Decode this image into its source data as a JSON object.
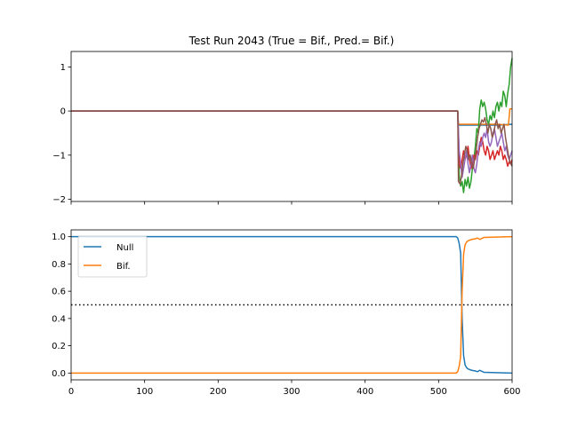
{
  "chart_data": [
    {
      "type": "line",
      "title": "Test Run 2043 (True = Bif., Pred.= Bif.)",
      "xlim": [
        0,
        600
      ],
      "ylim": [
        -2.05,
        1.35
      ],
      "yticks": [
        -2,
        -1,
        0,
        1
      ],
      "xtick_labels_shown": false,
      "series": [
        {
          "color": "#1f77b4",
          "points": [
            [
              0,
              0
            ],
            [
              526,
              0
            ],
            [
              527,
              -0.32
            ],
            [
              580,
              -0.32
            ],
            [
              600,
              -0.3
            ]
          ]
        },
        {
          "color": "#ff7f0e",
          "points": [
            [
              0,
              0
            ],
            [
              526,
              0
            ],
            [
              527,
              -0.3
            ],
            [
              540,
              -0.3
            ],
            [
              560,
              -0.3
            ],
            [
              580,
              -0.3
            ],
            [
              595,
              -0.32
            ],
            [
              597,
              0.05
            ],
            [
              600,
              0.05
            ]
          ]
        },
        {
          "color": "#2ca02c",
          "points": [
            [
              0,
              0
            ],
            [
              526,
              0
            ],
            [
              528,
              -1.45
            ],
            [
              530,
              -1.7
            ],
            [
              532,
              -1.6
            ],
            [
              534,
              -1.85
            ],
            [
              536,
              -1.55
            ],
            [
              538,
              -1.7
            ],
            [
              540,
              -1.5
            ],
            [
              542,
              -1.75
            ],
            [
              544,
              -1.6
            ],
            [
              546,
              -1.3
            ],
            [
              548,
              -1.1
            ],
            [
              550,
              -0.8
            ],
            [
              552,
              -0.4
            ],
            [
              554,
              -0.5
            ],
            [
              556,
              0.05
            ],
            [
              558,
              0.25
            ],
            [
              560,
              0.1
            ],
            [
              562,
              0.2
            ],
            [
              564,
              0.05
            ],
            [
              566,
              -0.2
            ],
            [
              568,
              -0.3
            ],
            [
              570,
              -0.1
            ],
            [
              572,
              -0.2
            ],
            [
              574,
              0.0
            ],
            [
              576,
              -0.15
            ],
            [
              578,
              0.1
            ],
            [
              580,
              0.2
            ],
            [
              582,
              0.0
            ],
            [
              584,
              0.2
            ],
            [
              586,
              0.1
            ],
            [
              588,
              0.45
            ],
            [
              590,
              0.35
            ],
            [
              592,
              0.1
            ],
            [
              594,
              0.4
            ],
            [
              596,
              0.6
            ],
            [
              598,
              1.0
            ],
            [
              600,
              1.2
            ]
          ]
        },
        {
          "color": "#d62728",
          "points": [
            [
              0,
              0
            ],
            [
              526,
              0
            ],
            [
              528,
              -1.2
            ],
            [
              530,
              -1.3
            ],
            [
              532,
              -1.1
            ],
            [
              534,
              -0.9
            ],
            [
              536,
              -1.1
            ],
            [
              538,
              -1.0
            ],
            [
              540,
              -0.8
            ],
            [
              542,
              -1.1
            ],
            [
              544,
              -1.3
            ],
            [
              546,
              -1.2
            ],
            [
              548,
              -1.0
            ],
            [
              550,
              -1.1
            ],
            [
              552,
              -0.9
            ],
            [
              554,
              -1.0
            ],
            [
              556,
              -0.8
            ],
            [
              558,
              -0.6
            ],
            [
              560,
              -0.7
            ],
            [
              562,
              -0.9
            ],
            [
              564,
              -1.0
            ],
            [
              566,
              -0.8
            ],
            [
              568,
              -0.9
            ],
            [
              570,
              -1.1
            ],
            [
              572,
              -1.0
            ],
            [
              574,
              -0.9
            ],
            [
              576,
              -1.1
            ],
            [
              578,
              -1.0
            ],
            [
              580,
              -0.9
            ],
            [
              582,
              -1.0
            ],
            [
              584,
              -0.8
            ],
            [
              586,
              -0.9
            ],
            [
              588,
              -1.1
            ],
            [
              590,
              -1.0
            ],
            [
              592,
              -1.1
            ],
            [
              594,
              -1.25
            ],
            [
              596,
              -1.15
            ],
            [
              598,
              -1.2
            ],
            [
              600,
              -1.1
            ]
          ]
        },
        {
          "color": "#9467bd",
          "points": [
            [
              0,
              0
            ],
            [
              526,
              0
            ],
            [
              528,
              -0.9
            ],
            [
              530,
              -1.2
            ],
            [
              532,
              -1.5
            ],
            [
              534,
              -1.3
            ],
            [
              536,
              -1.1
            ],
            [
              538,
              -0.9
            ],
            [
              540,
              -1.2
            ],
            [
              542,
              -1.4
            ],
            [
              544,
              -1.2
            ],
            [
              546,
              -1.0
            ],
            [
              548,
              -1.3
            ],
            [
              550,
              -1.4
            ],
            [
              552,
              -1.2
            ],
            [
              554,
              -0.9
            ],
            [
              556,
              -0.7
            ],
            [
              558,
              -0.8
            ],
            [
              560,
              -0.6
            ],
            [
              562,
              -0.5
            ],
            [
              564,
              -0.6
            ],
            [
              566,
              -0.4
            ],
            [
              568,
              -0.7
            ],
            [
              570,
              -0.8
            ],
            [
              572,
              -0.7
            ],
            [
              574,
              -0.5
            ],
            [
              576,
              -0.4
            ],
            [
              578,
              -0.6
            ],
            [
              580,
              -0.8
            ],
            [
              582,
              -0.7
            ],
            [
              584,
              -0.6
            ],
            [
              586,
              -0.5
            ],
            [
              588,
              -0.7
            ],
            [
              590,
              -0.9
            ],
            [
              592,
              -0.8
            ],
            [
              594,
              -1.0
            ],
            [
              596,
              -1.1
            ],
            [
              598,
              -1.0
            ],
            [
              600,
              -0.9
            ]
          ]
        },
        {
          "color": "#8c564b",
          "points": [
            [
              0,
              0
            ],
            [
              526,
              0
            ],
            [
              527,
              -1.6
            ],
            [
              529,
              -1.65
            ],
            [
              531,
              -1.5
            ],
            [
              533,
              -1.2
            ],
            [
              535,
              -1.0
            ],
            [
              537,
              -0.8
            ],
            [
              539,
              -0.9
            ],
            [
              541,
              -1.1
            ],
            [
              543,
              -1.0
            ],
            [
              545,
              -1.2
            ],
            [
              547,
              -1.3
            ],
            [
              549,
              -1.1
            ],
            [
              551,
              -0.9
            ],
            [
              553,
              -0.6
            ],
            [
              555,
              -0.4
            ],
            [
              557,
              -0.3
            ],
            [
              559,
              -0.2
            ],
            [
              561,
              -0.25
            ],
            [
              563,
              -0.15
            ],
            [
              565,
              -0.3
            ],
            [
              567,
              -0.5
            ],
            [
              569,
              -0.3
            ],
            [
              571,
              -0.4
            ],
            [
              573,
              -0.6
            ],
            [
              575,
              -0.5
            ],
            [
              577,
              -0.3
            ],
            [
              579,
              -0.2
            ],
            [
              581,
              -0.4
            ],
            [
              583,
              -0.3
            ],
            [
              585,
              -0.5
            ],
            [
              587,
              -0.4
            ],
            [
              589,
              -0.3
            ],
            [
              591,
              -0.6
            ],
            [
              593,
              -0.8
            ],
            [
              595,
              -1.0
            ],
            [
              597,
              -1.15
            ],
            [
              600,
              -1.25
            ]
          ]
        }
      ]
    },
    {
      "type": "line",
      "xlim": [
        0,
        600
      ],
      "ylim": [
        -0.05,
        1.05
      ],
      "xticks": [
        0,
        100,
        200,
        300,
        400,
        500,
        600
      ],
      "yticks": [
        0.0,
        0.2,
        0.4,
        0.6,
        0.8,
        1.0
      ],
      "ytick_labels": [
        "0.0",
        "0.2",
        "0.4",
        "0.6",
        "0.8",
        "1.0"
      ],
      "threshold": 0.5,
      "legend_position": "upper-left",
      "series": [
        {
          "name": "Null",
          "color": "#1f77b4",
          "points": [
            [
              0,
              1.0
            ],
            [
              524,
              1.0
            ],
            [
              526,
              0.99
            ],
            [
              528,
              0.95
            ],
            [
              530,
              0.88
            ],
            [
              532,
              0.4
            ],
            [
              534,
              0.13
            ],
            [
              536,
              0.06
            ],
            [
              538,
              0.04
            ],
            [
              540,
              0.03
            ],
            [
              545,
              0.02
            ],
            [
              550,
              0.015
            ],
            [
              553,
              0.01
            ],
            [
              556,
              0.02
            ],
            [
              558,
              0.015
            ],
            [
              562,
              0.005
            ],
            [
              600,
              0.0
            ]
          ]
        },
        {
          "name": "Bif.",
          "color": "#ff7f0e",
          "points": [
            [
              0,
              0.0
            ],
            [
              524,
              0.0
            ],
            [
              526,
              0.01
            ],
            [
              528,
              0.05
            ],
            [
              530,
              0.12
            ],
            [
              532,
              0.6
            ],
            [
              534,
              0.87
            ],
            [
              536,
              0.94
            ],
            [
              538,
              0.96
            ],
            [
              540,
              0.97
            ],
            [
              545,
              0.98
            ],
            [
              550,
              0.985
            ],
            [
              553,
              0.99
            ],
            [
              556,
              0.98
            ],
            [
              558,
              0.985
            ],
            [
              562,
              0.995
            ],
            [
              600,
              1.0
            ]
          ]
        }
      ]
    }
  ]
}
